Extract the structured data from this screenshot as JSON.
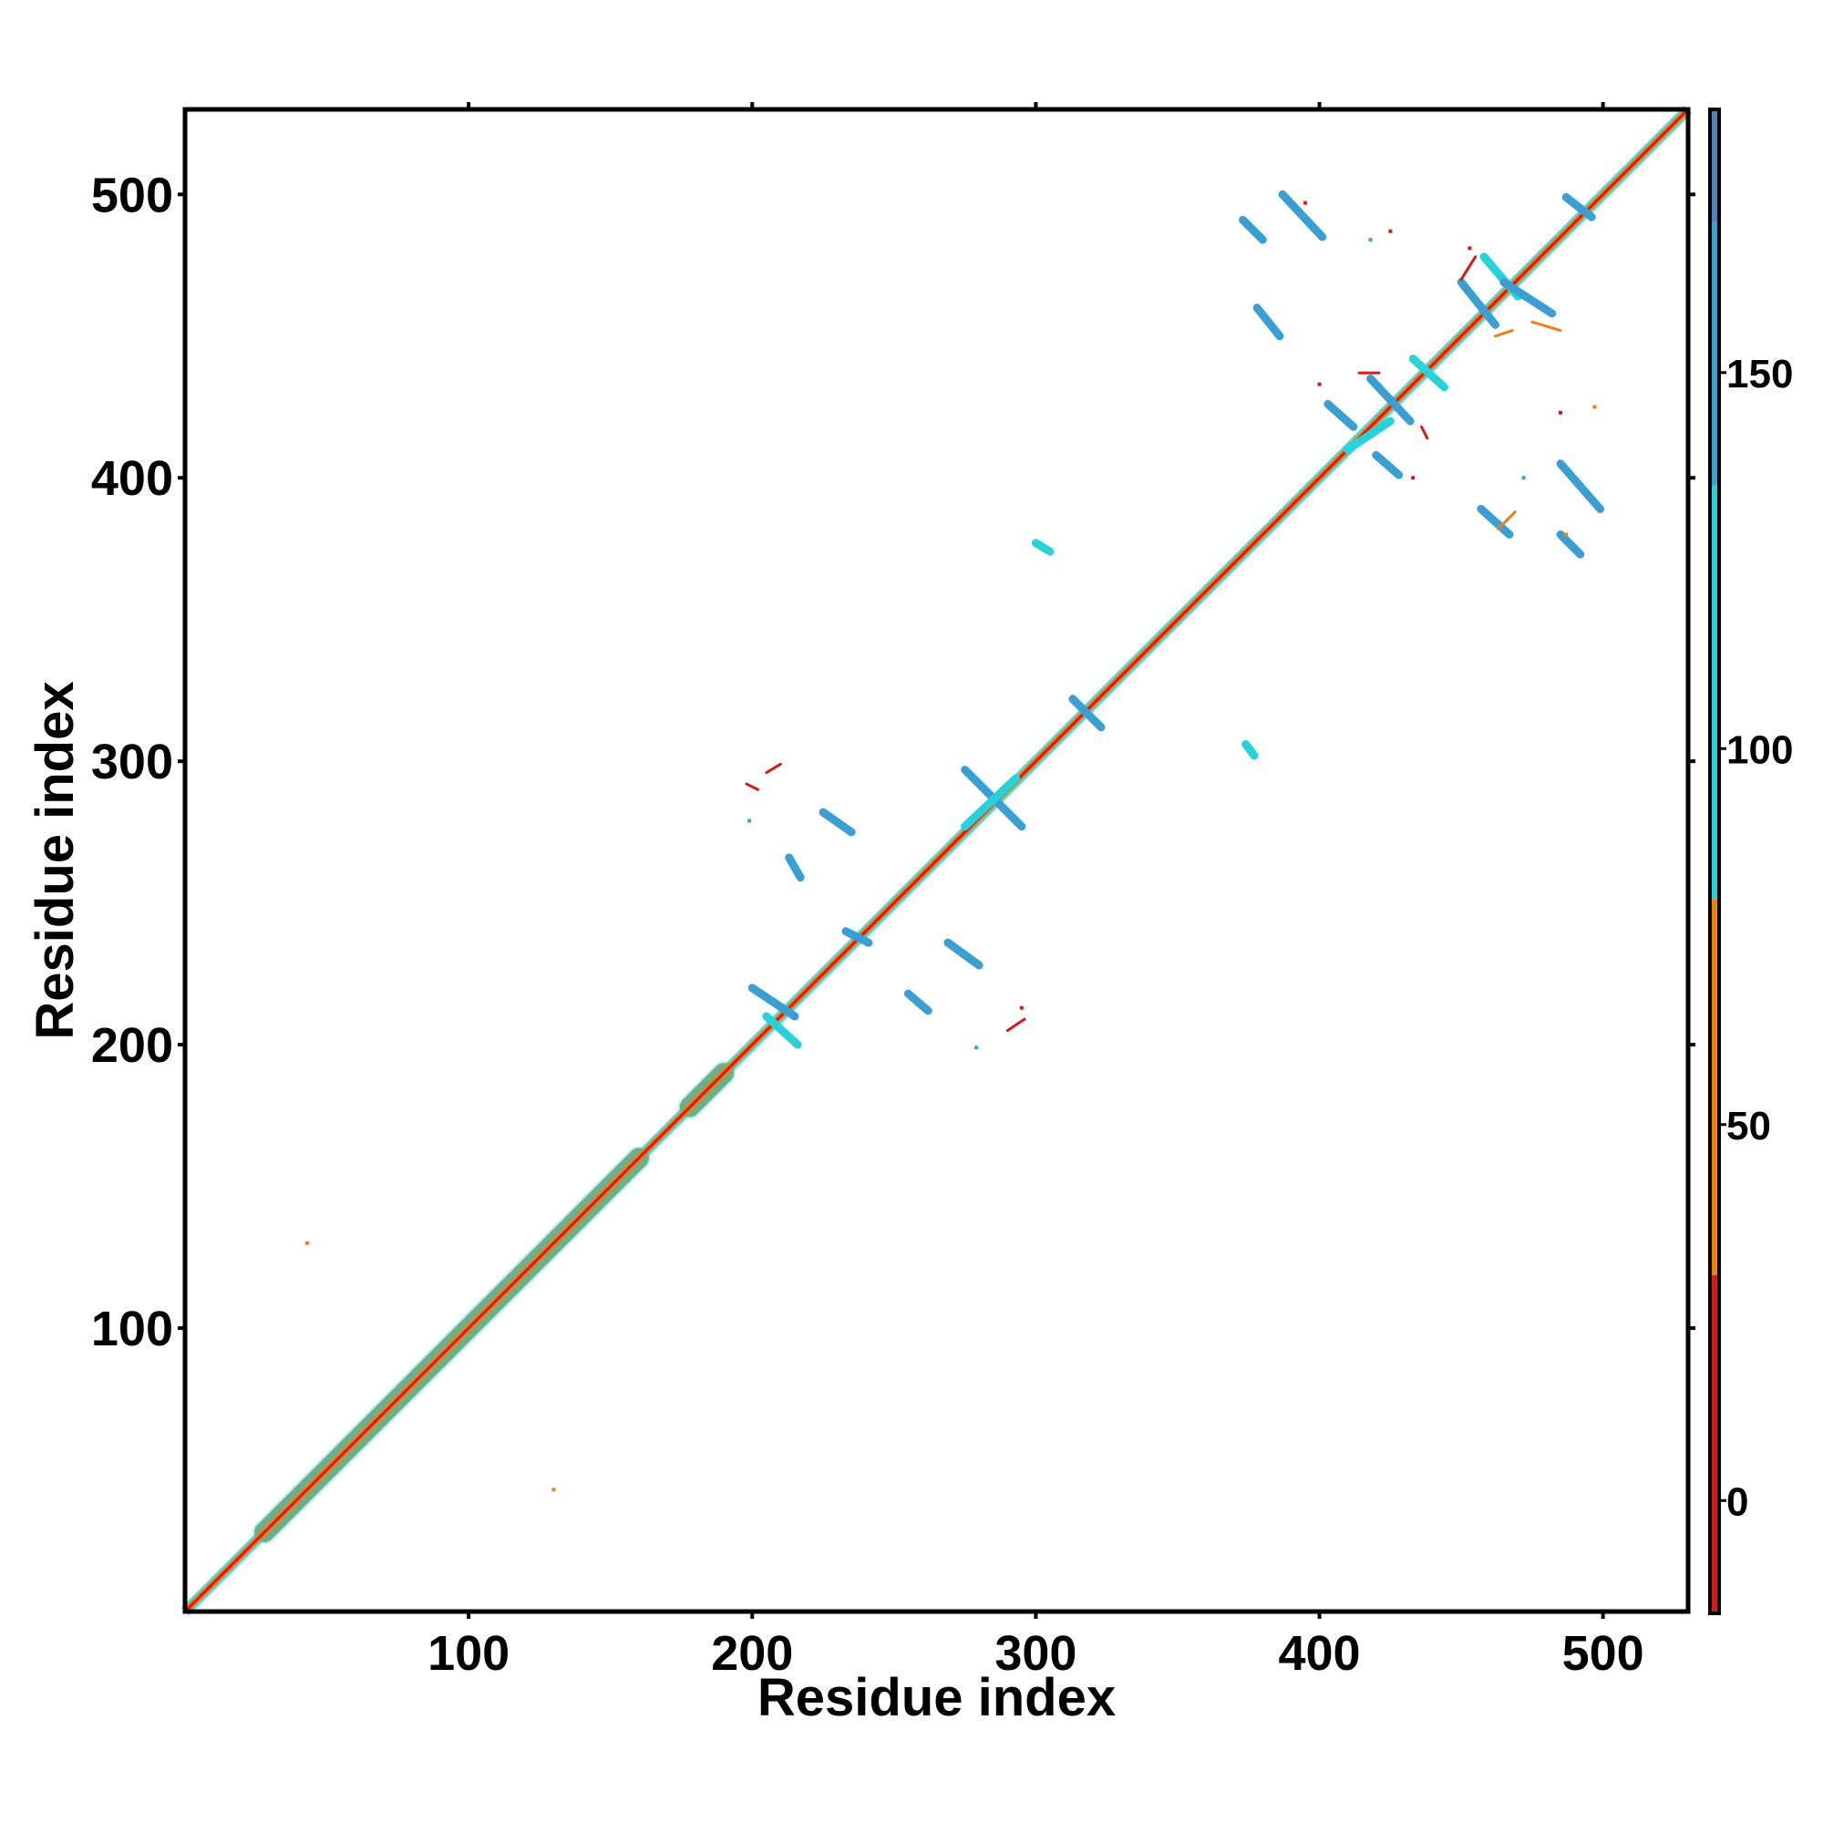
{
  "chart_data": {
    "type": "heatmap",
    "title": "",
    "xlabel": "Residue index",
    "ylabel": "Residue index",
    "xlim": [
      0,
      530
    ],
    "ylim": [
      0,
      530
    ],
    "x_ticks": [
      100,
      200,
      300,
      400,
      500
    ],
    "y_ticks": [
      100,
      200,
      300,
      400,
      500
    ],
    "grid": false,
    "legend": "colorbar-right",
    "colorbar": {
      "range": [
        -15,
        185
      ],
      "ticks": [
        0,
        50,
        100,
        150
      ],
      "bands": [
        {
          "from": -15,
          "to": 30,
          "color": "#d7191c"
        },
        {
          "from": 30,
          "to": 80,
          "color": "#f07f12"
        },
        {
          "from": 80,
          "to": 135,
          "color": "#27d3d8"
        },
        {
          "from": 135,
          "to": 170,
          "color": "#3c9fd3"
        },
        {
          "from": 170,
          "to": 185,
          "color": "#4f82b6"
        }
      ]
    },
    "diagonal": {
      "from": 0,
      "to": 530,
      "thick_segments": [
        [
          28,
          160
        ],
        [
          178,
          190
        ]
      ],
      "thick_color": "#9a9a5a"
    },
    "contact_segments": [
      {
        "x": [
          387,
          401
        ],
        "y": [
          500,
          485
        ],
        "value": 145
      },
      {
        "x": [
          373,
          380
        ],
        "y": [
          491,
          484
        ],
        "value": 165
      },
      {
        "x": [
          378,
          386
        ],
        "y": [
          460,
          450
        ],
        "value": 160
      },
      {
        "x": [
          450,
          462
        ],
        "y": [
          469,
          454
        ],
        "value": 160
      },
      {
        "x": [
          458,
          470
        ],
        "y": [
          478,
          464
        ],
        "value": 110
      },
      {
        "x": [
          465,
          482
        ],
        "y": [
          469,
          458
        ],
        "value": 150
      },
      {
        "x": [
          487,
          496
        ],
        "y": [
          499,
          492
        ],
        "value": 165
      },
      {
        "x": [
          418,
          432
        ],
        "y": [
          435,
          420
        ],
        "value": 150
      },
      {
        "x": [
          433,
          444
        ],
        "y": [
          442,
          432
        ],
        "value": 110
      },
      {
        "x": [
          403,
          412
        ],
        "y": [
          426,
          418
        ],
        "value": 165
      },
      {
        "x": [
          410,
          425
        ],
        "y": [
          410,
          420
        ],
        "value": 110
      },
      {
        "x": [
          420,
          428
        ],
        "y": [
          408,
          401
        ],
        "value": 165
      },
      {
        "x": [
          457,
          467
        ],
        "y": [
          389,
          380
        ],
        "value": 165
      },
      {
        "x": [
          485,
          499
        ],
        "y": [
          405,
          389
        ],
        "value": 160
      },
      {
        "x": [
          485,
          492
        ],
        "y": [
          380,
          373
        ],
        "value": 165
      },
      {
        "x": [
          300,
          305
        ],
        "y": [
          377,
          374
        ],
        "value": 110
      },
      {
        "x": [
          313,
          323
        ],
        "y": [
          322,
          312
        ],
        "value": 165
      },
      {
        "x": [
          374,
          377
        ],
        "y": [
          306,
          302
        ],
        "value": 110
      },
      {
        "x": [
          275,
          295
        ],
        "y": [
          297,
          277
        ],
        "value": 150
      },
      {
        "x": [
          275,
          293
        ],
        "y": [
          277,
          294
        ],
        "value": 110
      },
      {
        "x": [
          225,
          235
        ],
        "y": [
          282,
          275
        ],
        "value": 160
      },
      {
        "x": [
          213,
          217
        ],
        "y": [
          266,
          259
        ],
        "value": 165
      },
      {
        "x": [
          233,
          241
        ],
        "y": [
          240,
          236
        ],
        "value": 165
      },
      {
        "x": [
          269,
          280
        ],
        "y": [
          236,
          228
        ],
        "value": 165
      },
      {
        "x": [
          255,
          262
        ],
        "y": [
          218,
          212
        ],
        "value": 165
      },
      {
        "x": [
          200,
          215
        ],
        "y": [
          220,
          210
        ],
        "value": 150
      },
      {
        "x": [
          205,
          216
        ],
        "y": [
          210,
          200
        ],
        "value": 110
      },
      {
        "x": [
          198,
          202
        ],
        "y": [
          292,
          290
        ],
        "value": 10
      },
      {
        "x": [
          205,
          210
        ],
        "y": [
          296,
          299
        ],
        "value": 10
      },
      {
        "x": [
          290,
          296
        ],
        "y": [
          205,
          209
        ],
        "value": 10
      },
      {
        "x": [
          450,
          455
        ],
        "y": [
          470,
          478
        ],
        "value": 10
      },
      {
        "x": [
          462,
          468
        ],
        "y": [
          450,
          452
        ],
        "value": 40
      },
      {
        "x": [
          475,
          485
        ],
        "y": [
          455,
          452
        ],
        "value": 40
      },
      {
        "x": [
          414,
          421
        ],
        "y": [
          437,
          437
        ],
        "value": 10
      },
      {
        "x": [
          436,
          438
        ],
        "y": [
          418,
          414
        ],
        "value": 10
      },
      {
        "x": [
          463,
          469
        ],
        "y": [
          382,
          388
        ],
        "value": 40
      }
    ],
    "contact_points": [
      {
        "x": 43,
        "y": 130,
        "value": 40
      },
      {
        "x": 130,
        "y": 43,
        "value": 40
      },
      {
        "x": 395,
        "y": 497,
        "value": 10
      },
      {
        "x": 425,
        "y": 487,
        "value": 10
      },
      {
        "x": 453,
        "y": 481,
        "value": 10
      },
      {
        "x": 497,
        "y": 425,
        "value": 40
      },
      {
        "x": 485,
        "y": 423,
        "value": 10
      },
      {
        "x": 400,
        "y": 433,
        "value": 10
      },
      {
        "x": 433,
        "y": 400,
        "value": 10
      },
      {
        "x": 487,
        "y": 380,
        "value": 40
      },
      {
        "x": 295,
        "y": 213,
        "value": 10
      },
      {
        "x": 279,
        "y": 199,
        "value": 150
      },
      {
        "x": 199,
        "y": 279,
        "value": 150
      },
      {
        "x": 418,
        "y": 484,
        "value": 150
      },
      {
        "x": 472,
        "y": 400,
        "value": 150
      }
    ]
  }
}
